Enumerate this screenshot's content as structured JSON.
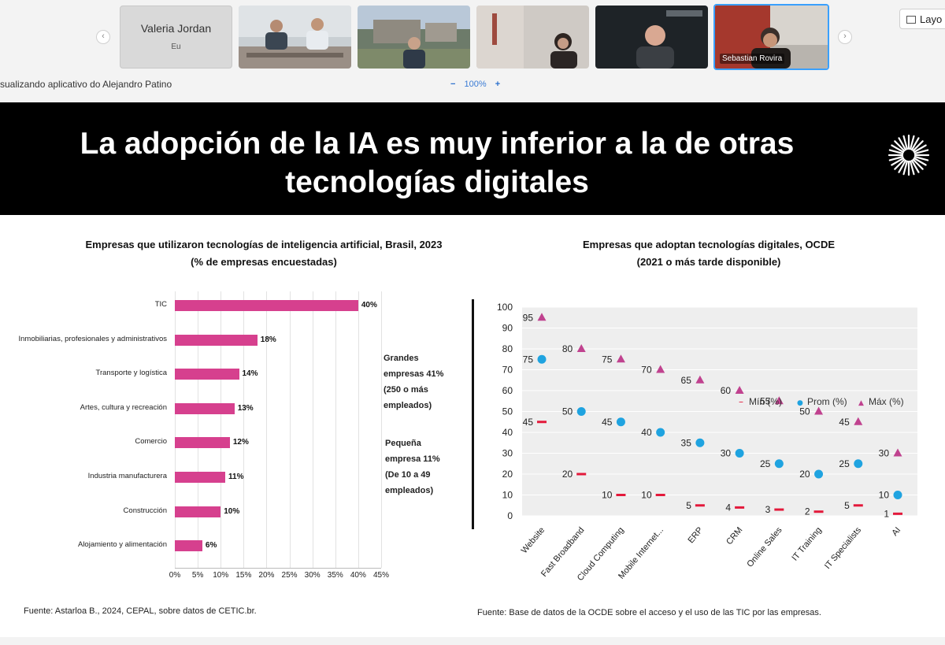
{
  "meeting": {
    "self_tile": {
      "name": "Valeria Jordan",
      "sub": "Eu"
    },
    "active_tile_label": "Sebastian Rovira",
    "layout_button": "Layo",
    "viewing_text": "sualizando aplicativo do Alejandro Patino",
    "zoom": {
      "minus": "−",
      "value": "100%",
      "plus": "+"
    }
  },
  "slide": {
    "title_line1": "La adopción de la IA es muy inferior a la de otras",
    "title_line2": "tecnologías digitales",
    "source_left": "Fuente: Astarloa B., 2024, CEPAL, sobre datos de CETIC.br.",
    "source_right": "Fuente: Base de datos de la OCDE sobre el acceso y el uso de las TIC por las empresas.",
    "notes": {
      "big": [
        "Grandes",
        "empresas 41%",
        "(250 o más",
        "empleados)"
      ],
      "small": [
        "Pequeña",
        "empresa 11%",
        "(De 10 a 49",
        "empleados)"
      ]
    }
  },
  "colors": {
    "magenta": "#d6408e",
    "blue": "#1fa3e0",
    "red": "#e3193b",
    "purple": "#c0428f"
  },
  "chart_data": [
    {
      "type": "bar",
      "orientation": "horizontal",
      "title": "Empresas que utilizaron tecnologías de inteligencia artificial, Brasil, 2023",
      "subtitle": "(% de empresas encuestadas)",
      "categories": [
        "TIC",
        "Inmobiliarias, profesionales y administrativos",
        "Transporte y logística",
        "Artes, cultura y recreación",
        "Comercio",
        "Industria manufacturera",
        "Construcción",
        "Alojamiento y alimentación"
      ],
      "values": [
        40,
        18,
        14,
        13,
        12,
        11,
        10,
        6
      ],
      "value_labels": [
        "40%",
        "18%",
        "14%",
        "13%",
        "12%",
        "11%",
        "10%",
        "6%"
      ],
      "xlim": [
        0,
        45
      ],
      "xticks": [
        "0%",
        "5%",
        "10%",
        "15%",
        "20%",
        "25%",
        "30%",
        "35%",
        "40%",
        "45%"
      ],
      "grid": true
    },
    {
      "type": "scatter",
      "title": "Empresas que adoptan tecnologías digitales, OCDE",
      "subtitle": "(2021 o más tarde disponible)",
      "categories": [
        "Website",
        "Fast Broadband",
        "Cloud Computing",
        "Mobile Internet...",
        "ERP",
        "CRM",
        "Online Sales",
        "IT Training",
        "IT Specialists",
        "AI"
      ],
      "series": [
        {
          "name": "Mín (%)",
          "marker": "dash",
          "values": [
            45,
            20,
            10,
            10,
            5,
            4,
            3,
            2,
            5,
            1
          ]
        },
        {
          "name": "Prom (%)",
          "marker": "circle",
          "values": [
            75,
            50,
            45,
            40,
            35,
            30,
            25,
            20,
            25,
            10
          ]
        },
        {
          "name": "Máx (%)",
          "marker": "triangle",
          "values": [
            95,
            80,
            75,
            70,
            65,
            60,
            55,
            50,
            45,
            30
          ]
        }
      ],
      "ylim": [
        0,
        100
      ],
      "yticks": [
        "0",
        "10",
        "20",
        "30",
        "40",
        "50",
        "60",
        "70",
        "80",
        "90",
        "100"
      ],
      "legend": "top-right",
      "grid": true
    }
  ]
}
